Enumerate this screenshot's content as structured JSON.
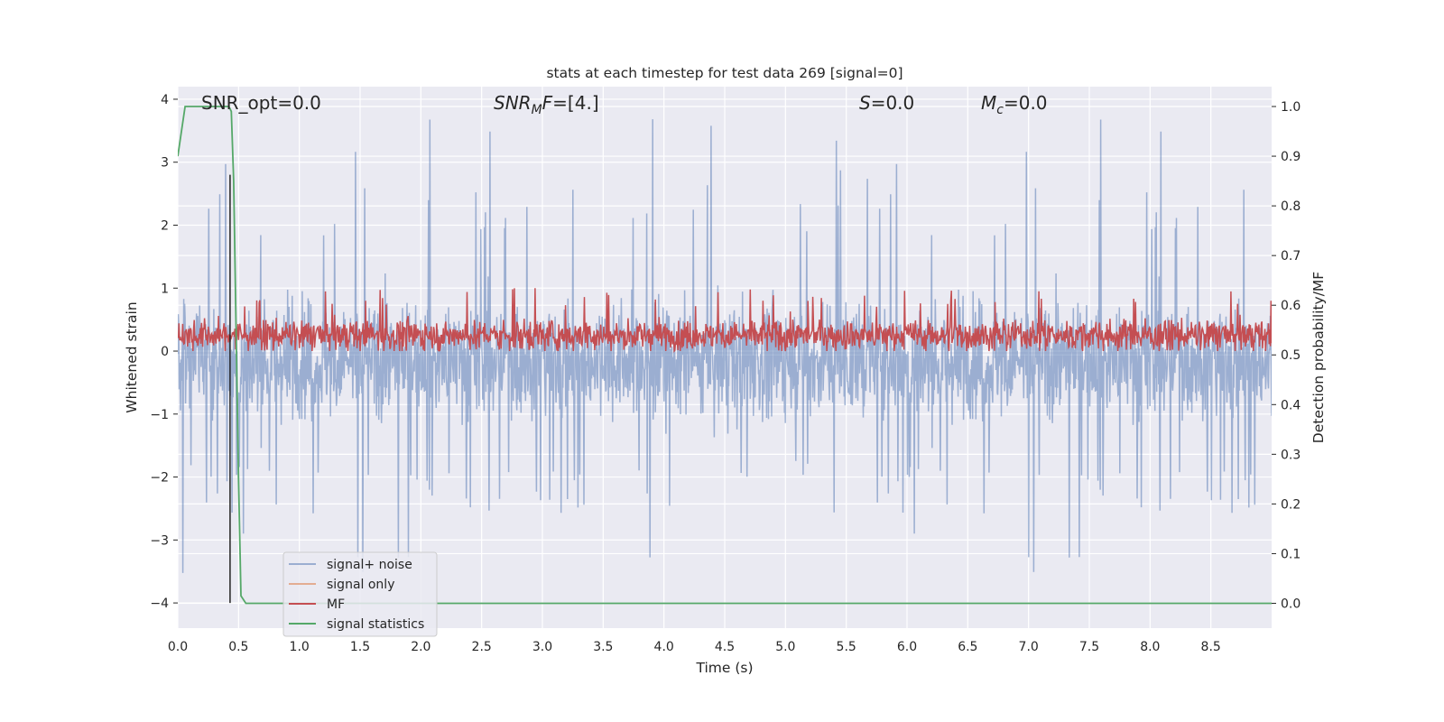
{
  "chart_data": {
    "type": "line",
    "title": "stats at each timestep for test data 269 [signal=0]",
    "xlabel": "Time (s)",
    "ylabel": "Whitened strain",
    "y2label": "Detection probability/MF",
    "xlim": [
      0.0,
      9.0
    ],
    "ylim": [
      -4.4,
      4.2
    ],
    "y2lim": [
      -0.05,
      1.04
    ],
    "x_ticks": [
      "0.0",
      "0.5",
      "1.0",
      "1.5",
      "2.0",
      "2.5",
      "3.0",
      "3.5",
      "4.0",
      "4.5",
      "5.0",
      "5.5",
      "6.0",
      "6.5",
      "7.0",
      "7.5",
      "8.0",
      "8.5"
    ],
    "y_ticks": [
      "−4",
      "−3",
      "−2",
      "−1",
      "0",
      "1",
      "2",
      "3",
      "4"
    ],
    "y2_ticks": [
      "0.0",
      "0.1",
      "0.2",
      "0.3",
      "0.4",
      "0.5",
      "0.6",
      "0.7",
      "0.8",
      "0.9",
      "1.0"
    ],
    "grid": true,
    "legend_position": "lower-left",
    "annotations": [
      {
        "prefix": "SNR_opt=0.0",
        "main": "",
        "sub": "",
        "rest": ""
      },
      {
        "prefix": "",
        "main": "SNR",
        "sub": "M",
        "rest": "F=[4.]"
      },
      {
        "prefix": "",
        "main": "S",
        "sub": "",
        "rest": "=0.0"
      },
      {
        "prefix": "",
        "main": "M",
        "sub": "c",
        "rest": "=0.0"
      }
    ],
    "series": [
      {
        "name": "signal+ noise",
        "color": "#4c72b0",
        "alpha": 0.5,
        "description": "noise band roughly -1.8 to 1.5, peaks to about +/-3.8",
        "band_low": -1.8,
        "band_high": 1.5,
        "extreme_low": -4.0,
        "extreme_high": 3.8
      },
      {
        "name": "signal only",
        "color": "#dd8452",
        "alpha": 0.6,
        "values": []
      },
      {
        "name": "MF",
        "color": "#c44e52",
        "description": "matched filter output around 0.25, range about 0 to 1.0",
        "center": 0.25,
        "low": 0.0,
        "high": 1.0
      },
      {
        "name": "signal statistics",
        "color": "#55a868",
        "axis": "right",
        "x": [
          0.0,
          0.06,
          0.42,
          0.44,
          0.46,
          0.48,
          0.5,
          0.52,
          0.56,
          9.0
        ],
        "y": [
          0.9,
          1.0,
          1.0,
          0.99,
          0.85,
          0.55,
          0.25,
          0.015,
          0.0,
          0.0
        ]
      },
      {
        "name": "marker",
        "color": "#222222",
        "axis": "left",
        "x": [
          0.43,
          0.43
        ],
        "y": [
          -4.0,
          2.8
        ]
      }
    ]
  }
}
